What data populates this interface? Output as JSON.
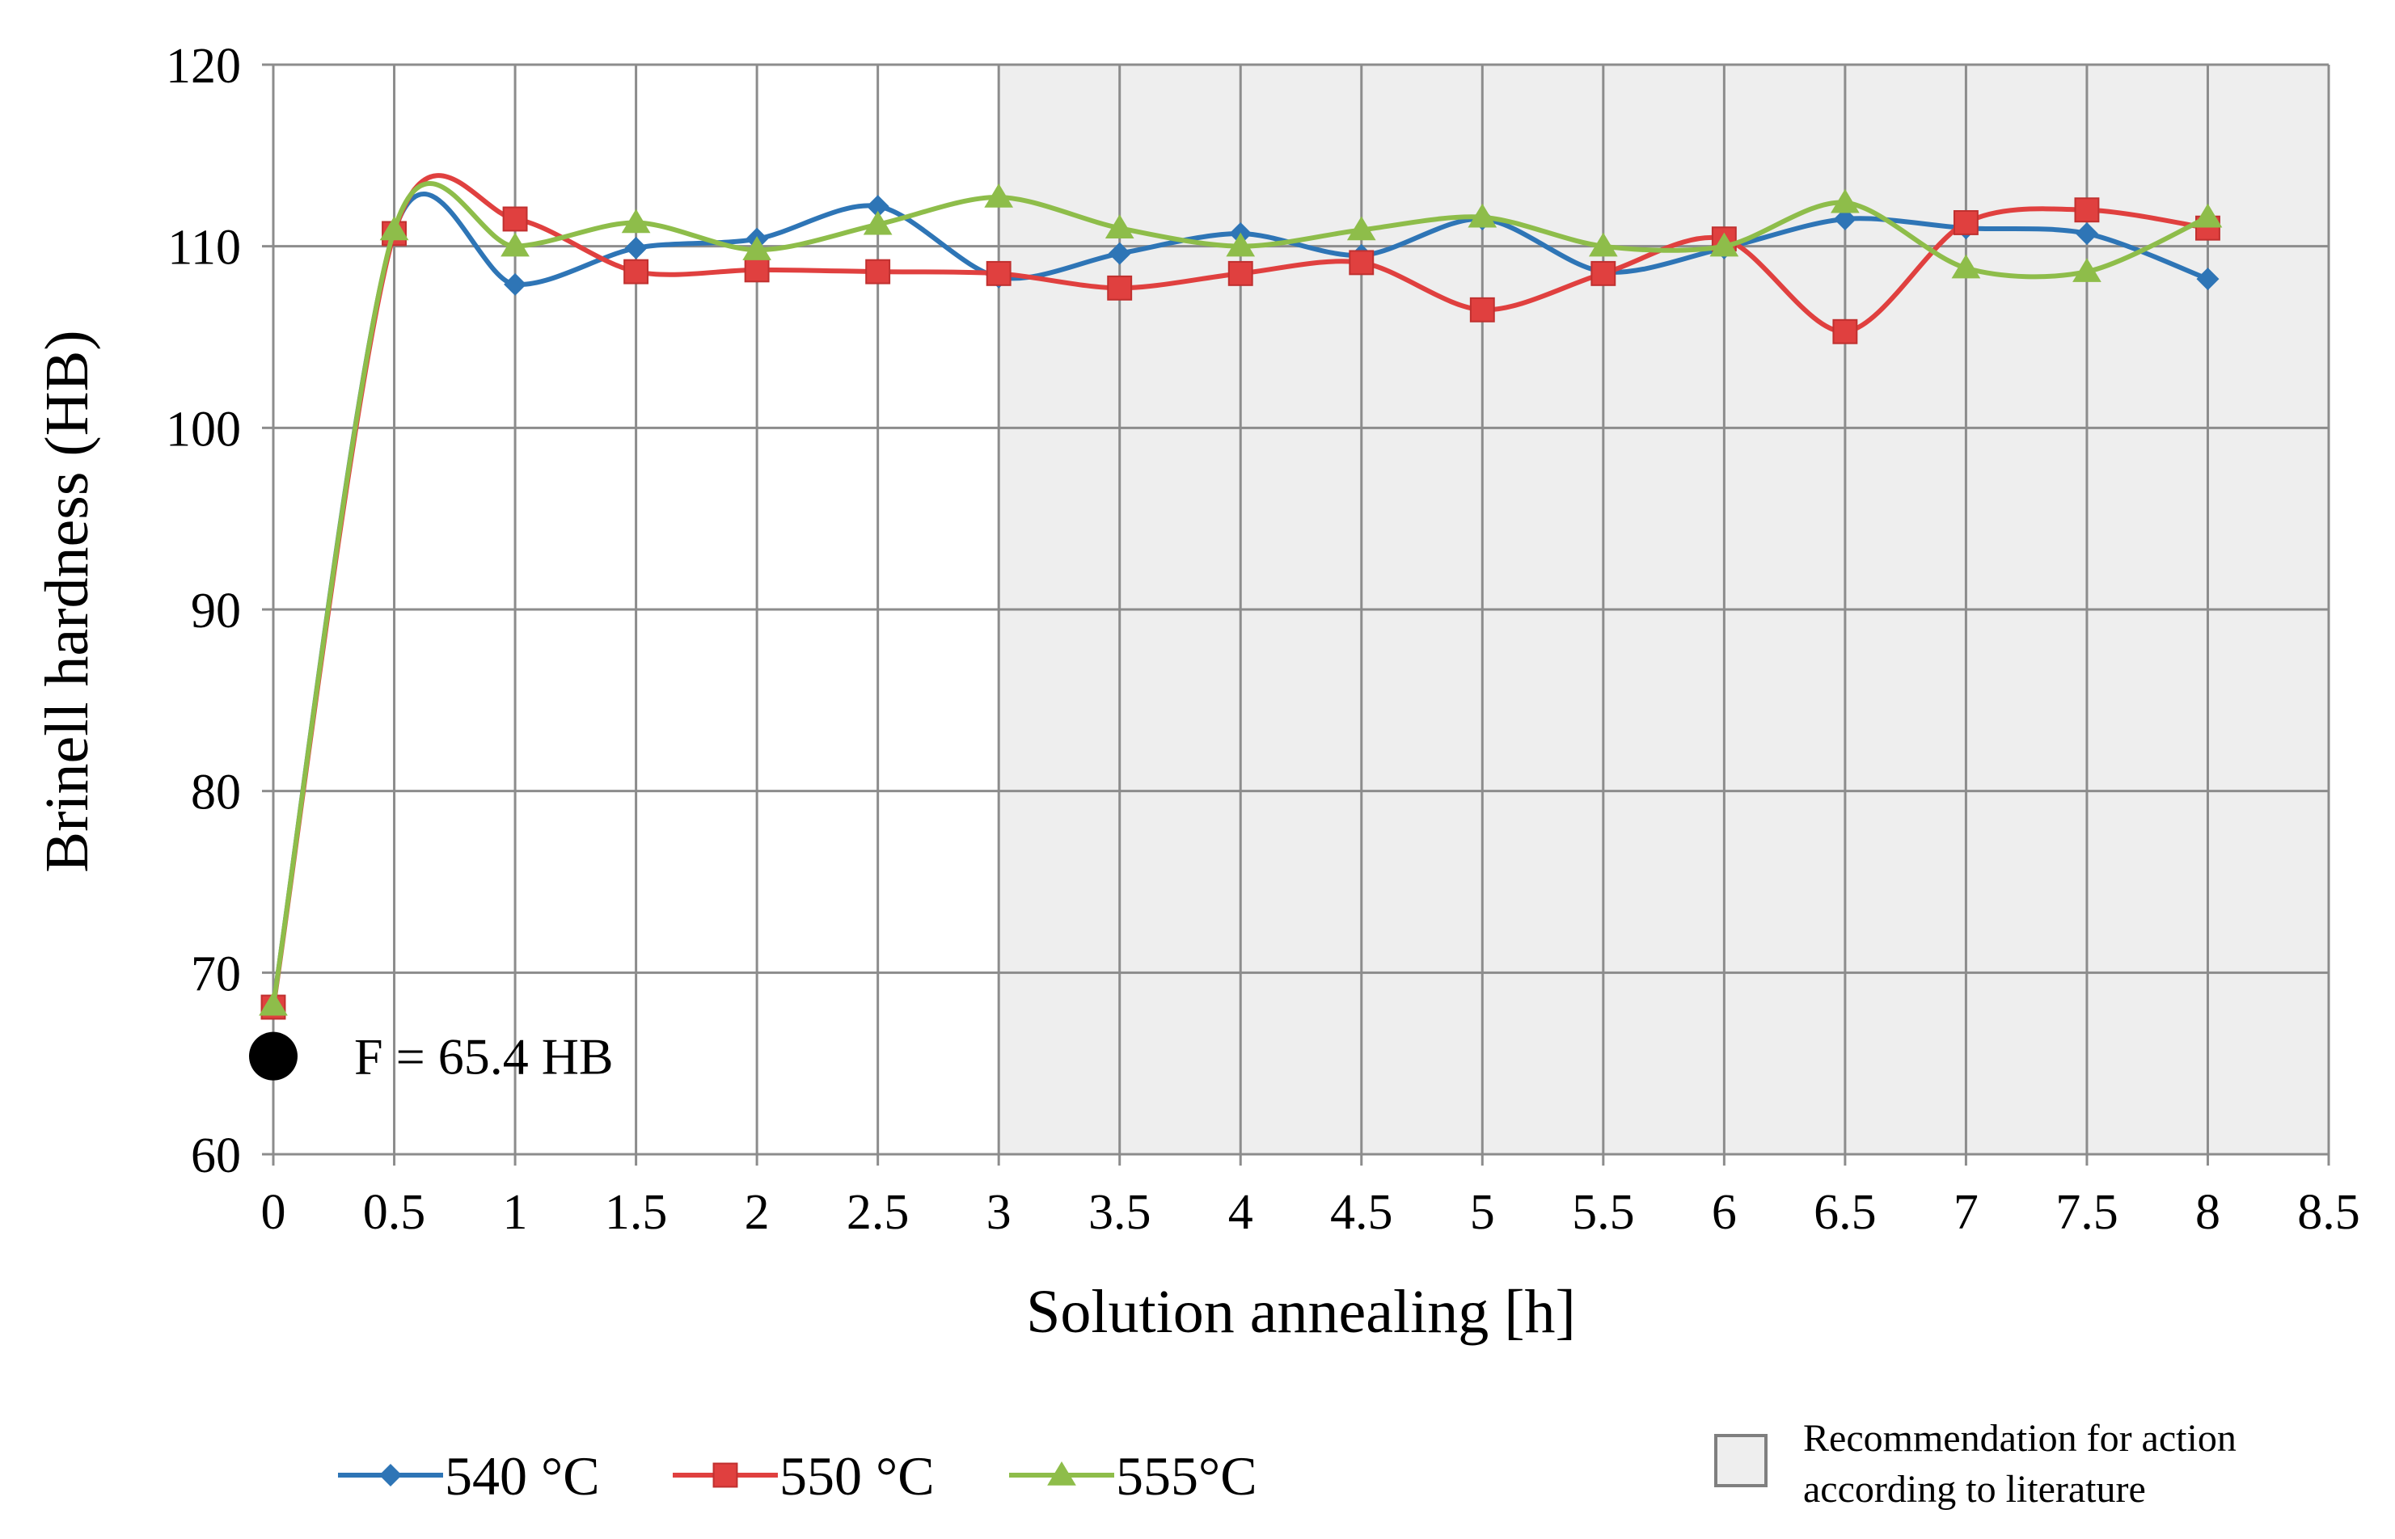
{
  "chart_data": {
    "type": "line",
    "title": "",
    "xlabel": "Solution annealing [h]",
    "ylabel": "Brinell hardness (HB)",
    "xlim": [
      0,
      8.5
    ],
    "ylim": [
      60,
      120
    ],
    "x_ticks": [
      0,
      0.5,
      1,
      1.5,
      2,
      2.5,
      3,
      3.5,
      4,
      4.5,
      5,
      5.5,
      6,
      6.5,
      7,
      7.5,
      8,
      8.5
    ],
    "x_tick_labels": [
      "0",
      "0.5",
      "1",
      "1.5",
      "2",
      "2.5",
      "3",
      "3.5",
      "4",
      "4.5",
      "5",
      "5.5",
      "6",
      "6.5",
      "7",
      "7.5",
      "8",
      "8.5"
    ],
    "y_ticks": [
      60,
      70,
      80,
      90,
      100,
      110,
      120
    ],
    "y_tick_labels": [
      "60",
      "70",
      "80",
      "90",
      "100",
      "110",
      "120"
    ],
    "grid": true,
    "x": [
      0,
      0.5,
      1,
      1.5,
      2,
      2.5,
      3,
      3.5,
      4,
      4.5,
      5,
      5.5,
      6,
      6.5,
      7,
      7.5,
      8
    ],
    "series": [
      {
        "name": "540 °C",
        "color": "#2e75b6",
        "marker": "diamond",
        "values": [
          68.2,
          110.8,
          107.9,
          109.9,
          110.4,
          112.2,
          108.3,
          109.6,
          110.7,
          109.5,
          111.5,
          108.6,
          109.9,
          111.5,
          111.0,
          110.7,
          108.2
        ]
      },
      {
        "name": "550 °C",
        "color": "#e0403f",
        "marker": "square",
        "values": [
          68.1,
          110.7,
          111.5,
          108.6,
          108.7,
          108.6,
          108.5,
          107.7,
          108.5,
          109.1,
          106.5,
          108.5,
          110.4,
          105.3,
          111.3,
          112.0,
          111.0
        ]
      },
      {
        "name": "555°C",
        "color": "#8ebd4a",
        "marker": "triangle",
        "values": [
          68.2,
          110.9,
          110.0,
          111.3,
          109.8,
          111.2,
          112.7,
          111.0,
          110.0,
          110.9,
          111.6,
          110.0,
          110.0,
          112.4,
          108.8,
          108.6,
          111.6
        ]
      }
    ],
    "shaded_region": {
      "x_start": 3,
      "x_end": 8.5,
      "color": "#eeeeee",
      "label_line1": "Recommendation for action",
      "label_line2": "according to literature"
    },
    "reference_point": {
      "x": 0,
      "y": 65.4,
      "label": "F = 65.4 HB"
    },
    "legend_position": "bottom"
  }
}
